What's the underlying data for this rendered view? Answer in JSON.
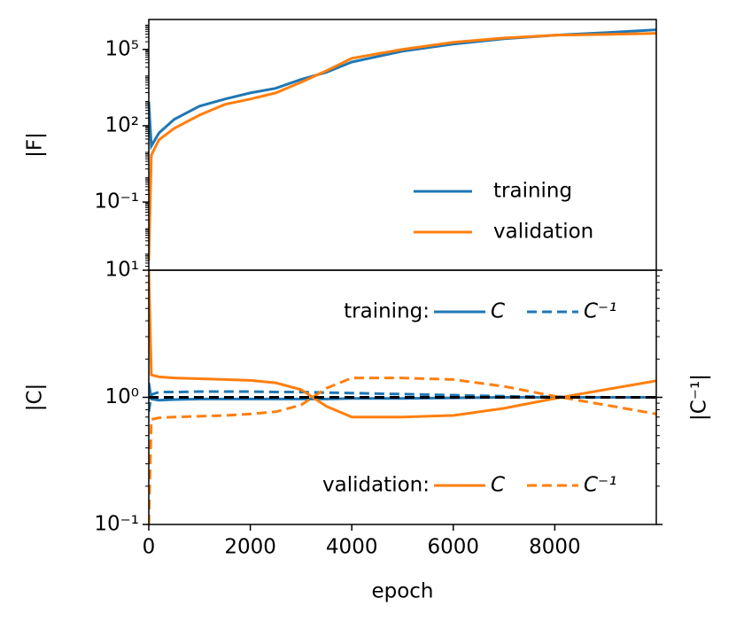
{
  "chart_data": [
    {
      "type": "line",
      "ylabel": "|F|",
      "log_y": true,
      "x": [
        0,
        50,
        200,
        500,
        1000,
        1500,
        2000,
        2500,
        3000,
        3500,
        4000,
        5000,
        6000,
        7000,
        8000,
        9000,
        10000
      ],
      "xlim": [
        0,
        10000
      ],
      "ylim": [
        0.00021,
        1500000
      ],
      "yticks": [
        {
          "value": 100000,
          "label": "10⁵"
        },
        {
          "value": 100,
          "label": "10²"
        },
        {
          "value": 0.1,
          "label": "10⁻¹"
        }
      ],
      "legend": "lower right",
      "series": [
        {
          "name": "training",
          "color": "#1f77b4",
          "values": [
            870,
            16,
            52,
            178,
            590,
            1120,
            1950,
            2950,
            6600,
            12600,
            32000,
            85000,
            162000,
            263000,
            363000,
            457000,
            589000
          ]
        },
        {
          "name": "validation",
          "color": "#ff7f0e",
          "values": [
            0.0005,
            7,
            28,
            79,
            263,
            692,
            1120,
            1950,
            5100,
            14500,
            44700,
            100000,
            190000,
            282000,
            363000,
            389000,
            427000
          ]
        }
      ]
    },
    {
      "type": "line",
      "ylabel": "|C|",
      "y2label": "|C⁻¹|",
      "log_y": true,
      "xlabel": "epoch",
      "x": [
        0,
        50,
        200,
        500,
        1000,
        1500,
        2000,
        2500,
        3000,
        3500,
        4000,
        5000,
        6000,
        7000,
        8000,
        9000,
        10000
      ],
      "xlim": [
        0,
        10000
      ],
      "xticks": [
        0,
        2000,
        4000,
        6000,
        8000
      ],
      "ylim": [
        0.1,
        10
      ],
      "yticks": [
        {
          "value": 10,
          "label": "10¹"
        },
        {
          "value": 1,
          "label": "10⁰"
        },
        {
          "value": 0.1,
          "label": "10⁻¹"
        }
      ],
      "reference_line": {
        "value": 1,
        "color": "#000000"
      },
      "series": [
        {
          "name": "C",
          "group": "training:",
          "dash": false,
          "color": "#1f77b4",
          "values": [
            1.3,
            0.97,
            0.95,
            0.96,
            0.97,
            0.97,
            0.97,
            0.97,
            0.97,
            0.97,
            0.98,
            0.98,
            0.99,
            1.0,
            1.0,
            1.0,
            1.0
          ]
        },
        {
          "name": "C⁻¹",
          "group": "training:",
          "dash": true,
          "color": "#1f77b4",
          "values": [
            0.77,
            1.05,
            1.1,
            1.1,
            1.11,
            1.11,
            1.11,
            1.1,
            1.1,
            1.09,
            1.08,
            1.06,
            1.04,
            1.02,
            1.01,
            1.0,
            1.0
          ]
        },
        {
          "name": "C",
          "group": "validation:",
          "dash": false,
          "color": "#ff7f0e",
          "values": [
            10,
            1.5,
            1.45,
            1.42,
            1.4,
            1.38,
            1.36,
            1.3,
            1.15,
            0.85,
            0.7,
            0.7,
            0.72,
            0.82,
            0.98,
            1.15,
            1.35
          ]
        },
        {
          "name": "C⁻¹",
          "group": "validation:",
          "dash": true,
          "color": "#ff7f0e",
          "values": [
            0.1,
            0.67,
            0.69,
            0.7,
            0.71,
            0.72,
            0.74,
            0.77,
            0.87,
            1.18,
            1.42,
            1.42,
            1.38,
            1.22,
            1.02,
            0.87,
            0.74
          ]
        }
      ]
    }
  ]
}
